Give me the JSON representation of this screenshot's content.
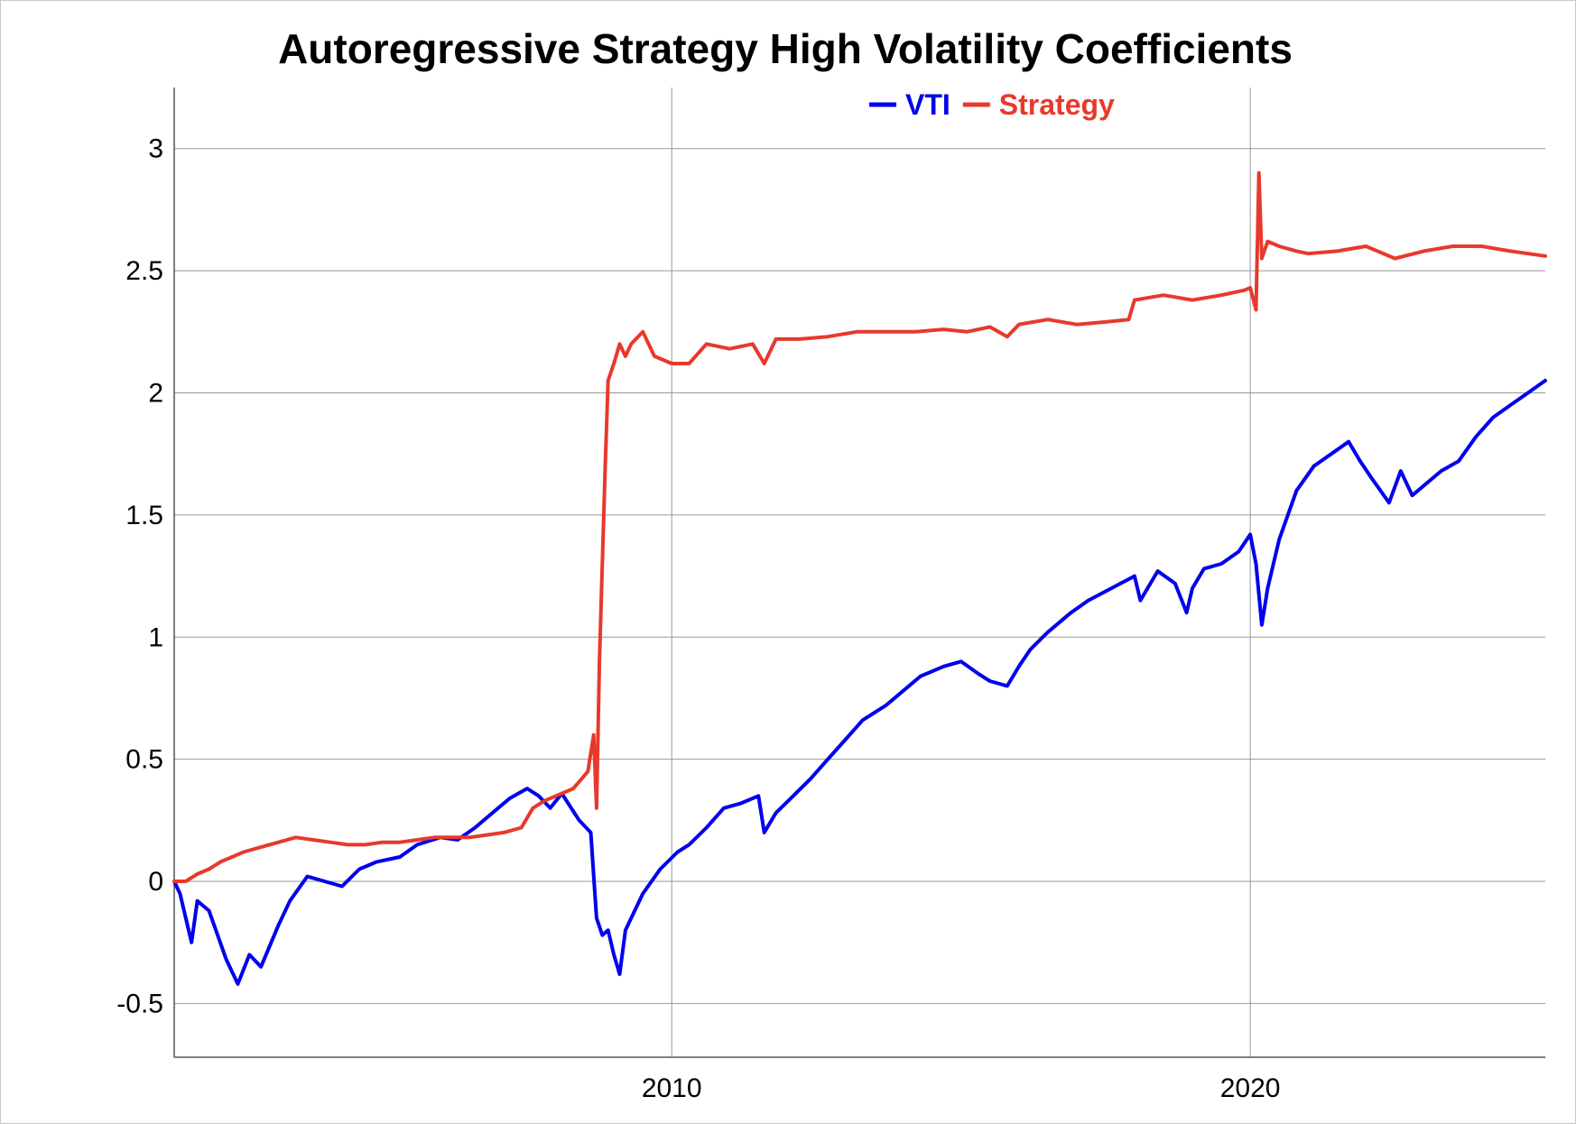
{
  "chart_data": {
    "type": "line",
    "title": "Autoregressive Strategy High Volatility Coefficients",
    "xlabel": "",
    "ylabel": "",
    "x_range": [
      2001.4,
      2025.1
    ],
    "ylim": [
      -0.72,
      3.25
    ],
    "x_ticks": [
      2010,
      2020
    ],
    "y_ticks": [
      -0.5,
      0,
      0.5,
      1,
      1.5,
      2,
      2.5,
      3
    ],
    "grid": true,
    "legend_position": "top",
    "series": [
      {
        "name": "VTI",
        "color": "#0000ee",
        "x": [
          2001.4,
          2001.5,
          2001.7,
          2001.8,
          2002.0,
          2002.3,
          2002.5,
          2002.7,
          2002.9,
          2003.2,
          2003.4,
          2003.7,
          2004.0,
          2004.3,
          2004.6,
          2004.9,
          2005.3,
          2005.6,
          2006.0,
          2006.3,
          2006.6,
          2006.9,
          2007.2,
          2007.5,
          2007.7,
          2007.9,
          2008.1,
          2008.4,
          2008.6,
          2008.7,
          2008.8,
          2008.9,
          2009.0,
          2009.1,
          2009.2,
          2009.5,
          2009.8,
          2010.1,
          2010.3,
          2010.6,
          2010.9,
          2011.2,
          2011.5,
          2011.6,
          2011.8,
          2012.1,
          2012.4,
          2012.7,
          2013.0,
          2013.3,
          2013.7,
          2014.0,
          2014.3,
          2014.7,
          2015.0,
          2015.3,
          2015.5,
          2015.8,
          2016.0,
          2016.2,
          2016.5,
          2016.9,
          2017.2,
          2017.6,
          2018.0,
          2018.1,
          2018.4,
          2018.7,
          2018.9,
          2019.0,
          2019.2,
          2019.5,
          2019.8,
          2020.0,
          2020.1,
          2020.2,
          2020.3,
          2020.5,
          2020.8,
          2021.1,
          2021.4,
          2021.7,
          2021.9,
          2022.1,
          2022.4,
          2022.6,
          2022.8,
          2023.0,
          2023.3,
          2023.6,
          2023.9,
          2024.2,
          2024.5,
          2024.8,
          2025.1
        ],
        "y": [
          0.0,
          -0.05,
          -0.25,
          -0.08,
          -0.12,
          -0.32,
          -0.42,
          -0.3,
          -0.35,
          -0.18,
          -0.08,
          0.02,
          0.0,
          -0.02,
          0.05,
          0.08,
          0.1,
          0.15,
          0.18,
          0.17,
          0.22,
          0.28,
          0.34,
          0.38,
          0.35,
          0.3,
          0.36,
          0.25,
          0.2,
          -0.15,
          -0.22,
          -0.2,
          -0.3,
          -0.38,
          -0.2,
          -0.05,
          0.05,
          0.12,
          0.15,
          0.22,
          0.3,
          0.32,
          0.35,
          0.2,
          0.28,
          0.35,
          0.42,
          0.5,
          0.58,
          0.66,
          0.72,
          0.78,
          0.84,
          0.88,
          0.9,
          0.85,
          0.82,
          0.8,
          0.88,
          0.95,
          1.02,
          1.1,
          1.15,
          1.2,
          1.25,
          1.15,
          1.27,
          1.22,
          1.1,
          1.2,
          1.28,
          1.3,
          1.35,
          1.42,
          1.3,
          1.05,
          1.2,
          1.4,
          1.6,
          1.7,
          1.75,
          1.8,
          1.72,
          1.65,
          1.55,
          1.68,
          1.58,
          1.62,
          1.68,
          1.72,
          1.82,
          1.9,
          1.95,
          2.0,
          2.05
        ]
      },
      {
        "name": "Strategy",
        "color": "#e8392c",
        "x": [
          2001.4,
          2001.6,
          2001.8,
          2002.0,
          2002.2,
          2002.4,
          2002.6,
          2002.9,
          2003.2,
          2003.5,
          2003.8,
          2004.1,
          2004.4,
          2004.7,
          2005.0,
          2005.3,
          2005.6,
          2005.9,
          2006.2,
          2006.5,
          2006.8,
          2007.1,
          2007.4,
          2007.6,
          2007.8,
          2008.0,
          2008.3,
          2008.55,
          2008.65,
          2008.7,
          2008.75,
          2008.8,
          2008.85,
          2008.9,
          2009.0,
          2009.1,
          2009.2,
          2009.3,
          2009.5,
          2009.7,
          2010.0,
          2010.3,
          2010.6,
          2011.0,
          2011.4,
          2011.6,
          2011.8,
          2012.2,
          2012.7,
          2013.2,
          2013.7,
          2014.2,
          2014.7,
          2015.1,
          2015.5,
          2015.8,
          2016.0,
          2016.5,
          2017.0,
          2017.5,
          2017.9,
          2018.0,
          2018.5,
          2019.0,
          2019.5,
          2019.9,
          2020.0,
          2020.1,
          2020.15,
          2020.2,
          2020.3,
          2020.5,
          2020.8,
          2021.0,
          2021.5,
          2022.0,
          2022.5,
          2023.0,
          2023.5,
          2024.0,
          2024.5,
          2025.1
        ],
        "y": [
          0.0,
          0.0,
          0.03,
          0.05,
          0.08,
          0.1,
          0.12,
          0.14,
          0.16,
          0.18,
          0.17,
          0.16,
          0.15,
          0.15,
          0.16,
          0.16,
          0.17,
          0.18,
          0.18,
          0.18,
          0.19,
          0.2,
          0.22,
          0.3,
          0.33,
          0.35,
          0.38,
          0.45,
          0.6,
          0.3,
          0.9,
          1.3,
          1.7,
          2.05,
          2.12,
          2.2,
          2.15,
          2.2,
          2.25,
          2.15,
          2.12,
          2.12,
          2.2,
          2.18,
          2.2,
          2.12,
          2.22,
          2.22,
          2.23,
          2.25,
          2.25,
          2.25,
          2.26,
          2.25,
          2.27,
          2.23,
          2.28,
          2.3,
          2.28,
          2.29,
          2.3,
          2.38,
          2.4,
          2.38,
          2.4,
          2.42,
          2.43,
          2.34,
          2.9,
          2.55,
          2.62,
          2.6,
          2.58,
          2.57,
          2.58,
          2.6,
          2.55,
          2.58,
          2.6,
          2.6,
          2.58,
          2.56
        ]
      }
    ]
  }
}
